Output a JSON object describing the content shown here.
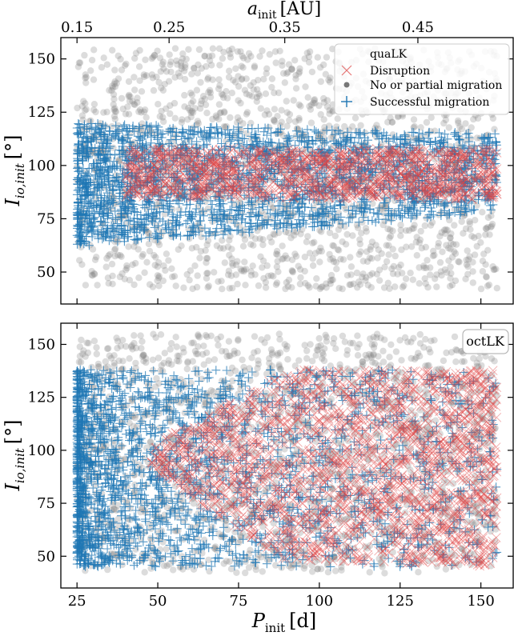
{
  "chart_data": [
    {
      "type": "scatter",
      "panel": "top",
      "xlabel": "P",
      "xlabel_sub": "init",
      "xlabel_unit": "[d]",
      "ylabel": "I",
      "ylabel_sub": "io,init",
      "ylabel_unit": "[°]",
      "secondary_xlabel": "a",
      "secondary_xlabel_sub": "init",
      "secondary_xlabel_unit": "[AU]",
      "xlim": [
        20,
        160
      ],
      "ylim": [
        35,
        160
      ],
      "xticks": [
        25,
        50,
        75,
        100,
        125,
        150
      ],
      "yticks": [
        50,
        75,
        100,
        125,
        150
      ],
      "secondary_xticks": [
        "0.15",
        "0.25",
        "0.35",
        "0.45"
      ],
      "secondary_xtick_positions_days": [
        25,
        53.5,
        89.3,
        130.5
      ],
      "legend": {
        "placement": "top-right",
        "title": "quaLK",
        "entries": [
          "Disruption",
          "No or partial migration",
          "Successful migration"
        ]
      },
      "series": [
        {
          "name": "No or partial migration",
          "marker": "o",
          "color": "#808080",
          "description": "fills x 25–155, y 42–155",
          "region": {
            "x": [
              25,
              155
            ],
            "y_lower": [
              42,
              42
            ],
            "y_upper": [
              155,
              155
            ]
          }
        },
        {
          "name": "Successful migration",
          "marker": "+",
          "color": "#1f77b4",
          "region": {
            "x": [
              25,
              155
            ],
            "y_lower": [
              62,
              78
            ],
            "y_upper": [
              120,
              115
            ]
          }
        },
        {
          "name": "Disruption",
          "marker": "x",
          "color": "#d62728",
          "region": {
            "x": [
              40,
              155
            ],
            "y_lower": [
              85,
              84
            ],
            "y_upper": [
              108,
              108
            ]
          }
        }
      ]
    },
    {
      "type": "scatter",
      "panel": "bottom",
      "tag": "octLK",
      "xlabel": "P",
      "xlabel_sub": "init",
      "xlabel_unit": "[d]",
      "ylabel": "I",
      "ylabel_sub": "io,init",
      "ylabel_unit": "[°]",
      "xlim": [
        20,
        160
      ],
      "ylim": [
        35,
        160
      ],
      "xticks": [
        25,
        50,
        75,
        100,
        125,
        150
      ],
      "yticks": [
        50,
        75,
        100,
        125,
        150
      ],
      "series": [
        {
          "name": "No or partial migration",
          "marker": "o",
          "color": "#808080",
          "region": {
            "x": [
              25,
              155
            ],
            "y_lower": [
              42,
              42
            ],
            "y_upper": [
              155,
              155
            ]
          }
        },
        {
          "name": "Successful migration",
          "marker": "+",
          "color": "#1f77b4",
          "region": {
            "x": [
              25,
              155
            ],
            "y_lower": [
              45,
              45
            ],
            "y_upper": [
              138,
              138
            ]
          }
        },
        {
          "name": "Disruption",
          "marker": "x",
          "color": "#d62728",
          "region": {
            "x": [
              48,
              155
            ],
            "y_lower": [
              50,
              45
            ],
            "y_upper": [
              138,
              138
            ]
          }
        }
      ]
    }
  ],
  "colors": {
    "gray": "#7f7f7f",
    "blue": "#1f77b4",
    "red": "#d62728"
  }
}
